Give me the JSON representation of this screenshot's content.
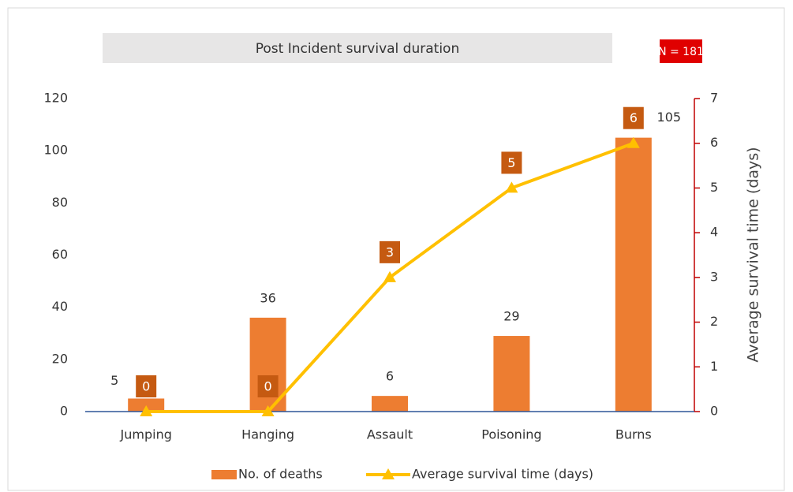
{
  "chart_data": {
    "type": "bar",
    "title": "Post Incident survival duration",
    "annotation": "N = 181",
    "categories": [
      "Jumping",
      "Hanging",
      "Assault",
      "Poisoning",
      "Burns"
    ],
    "series": [
      {
        "name": "No. of deaths",
        "type": "bar",
        "color": "#ed7d31",
        "values": [
          5,
          36,
          6,
          29,
          105
        ]
      },
      {
        "name": "Average survival time (days)",
        "type": "line",
        "axis": "y2",
        "color": "#ffc000",
        "label_color": "#c55a11",
        "values": [
          0,
          0,
          3,
          5,
          6
        ]
      }
    ],
    "ylim": [
      0,
      120
    ],
    "yticks": [
      0,
      20,
      40,
      60,
      80,
      100,
      120
    ],
    "y2lim": [
      0,
      7
    ],
    "y2ticks": [
      0,
      1,
      2,
      3,
      4,
      5,
      6,
      7
    ],
    "y2label": "Average survival time (days)",
    "y2_axis_color": "#c00000",
    "grid": false,
    "legend": "bottom"
  }
}
